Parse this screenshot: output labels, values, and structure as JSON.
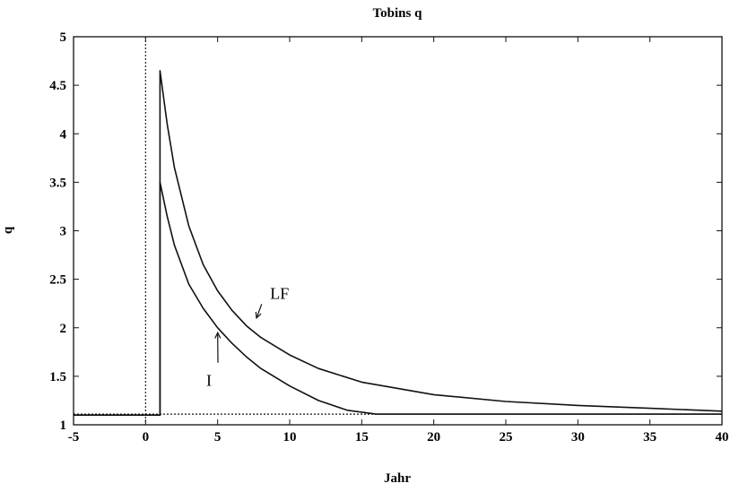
{
  "chart_data": {
    "type": "line",
    "title": "Tobins q",
    "xlabel": "Jahr",
    "ylabel": "q",
    "xlim": [
      -5,
      40
    ],
    "ylim": [
      1,
      5
    ],
    "xticks": [
      -5,
      0,
      5,
      10,
      15,
      20,
      25,
      30,
      35,
      40
    ],
    "yticks": [
      1,
      1.5,
      2,
      2.5,
      3,
      3.5,
      4,
      4.5,
      5
    ],
    "grid": false,
    "series": [
      {
        "name": "LF",
        "x": [
          -5,
          1,
          1,
          1.5,
          2,
          3,
          4,
          5,
          6,
          7,
          8,
          10,
          12,
          15,
          20,
          25,
          30,
          35,
          40
        ],
        "y": [
          1.1,
          1.1,
          4.65,
          4.1,
          3.65,
          3.05,
          2.65,
          2.38,
          2.18,
          2.02,
          1.9,
          1.72,
          1.58,
          1.44,
          1.31,
          1.24,
          1.2,
          1.17,
          1.14
        ]
      },
      {
        "name": "I",
        "x": [
          -5,
          1,
          1,
          1.5,
          2,
          3,
          4,
          5,
          6,
          7,
          8,
          10,
          12,
          14,
          16,
          17,
          20,
          25,
          30,
          35,
          40
        ],
        "y": [
          1.1,
          1.1,
          3.5,
          3.15,
          2.85,
          2.45,
          2.2,
          2.0,
          1.84,
          1.7,
          1.58,
          1.4,
          1.25,
          1.15,
          1.11,
          1.11,
          1.11,
          1.11,
          1.11,
          1.11,
          1.11
        ]
      },
      {
        "name": "",
        "style": "dotted",
        "x": [
          -5,
          40
        ],
        "y": [
          1.11,
          1.11
        ]
      }
    ],
    "vline": {
      "x": 0,
      "style": "dotted"
    },
    "annotations": [
      {
        "text": "LF",
        "x": 9.3,
        "y": 2.3,
        "arrow_to": [
          7.7,
          2.1
        ]
      },
      {
        "text": "I",
        "x": 4.4,
        "y": 1.4,
        "arrow_to": [
          5.0,
          1.95
        ]
      }
    ]
  }
}
